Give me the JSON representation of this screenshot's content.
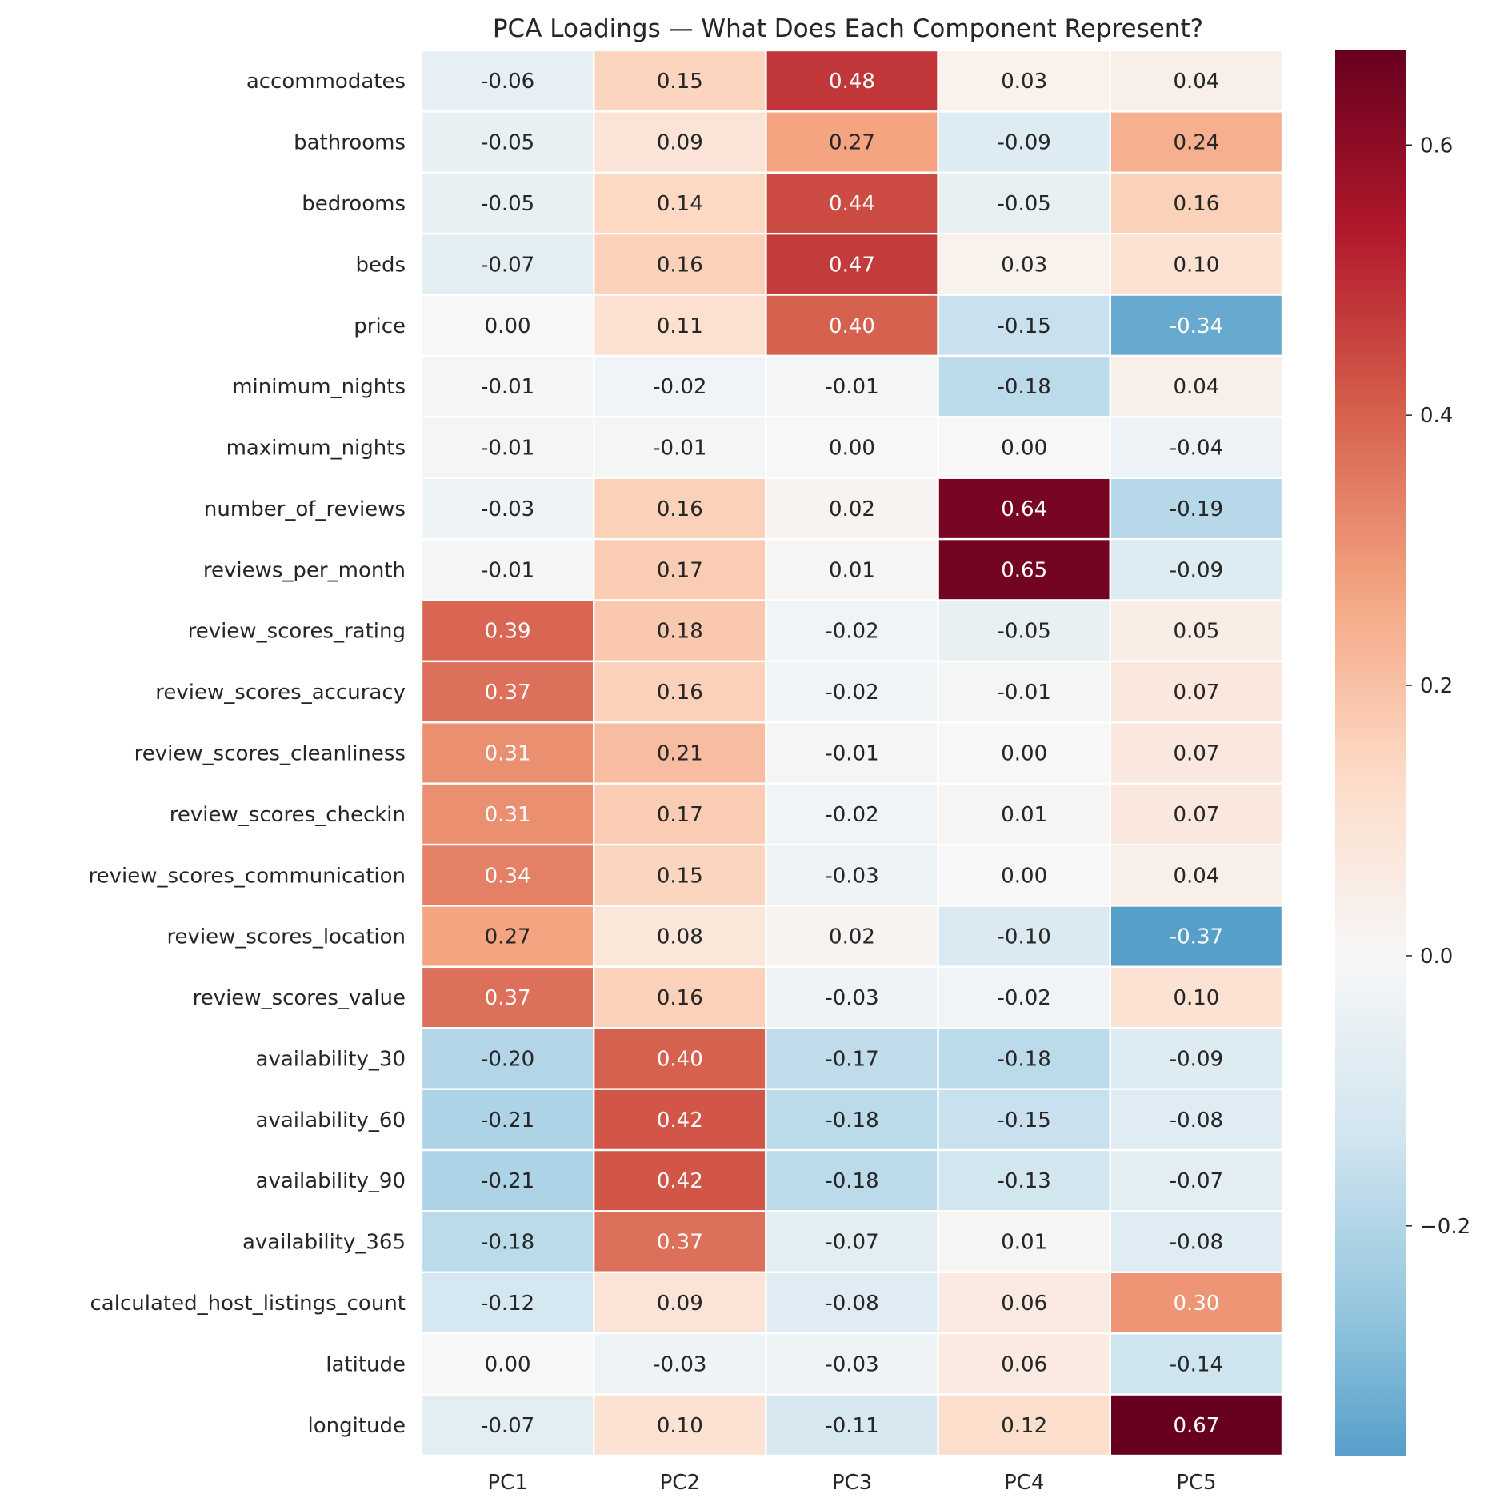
{
  "chart_data": {
    "type": "heatmap",
    "title": "PCA Loadings — What Does Each Component Represent?",
    "columns": [
      "PC1",
      "PC2",
      "PC3",
      "PC4",
      "PC5"
    ],
    "rows": [
      "accommodates",
      "bathrooms",
      "bedrooms",
      "beds",
      "price",
      "minimum_nights",
      "maximum_nights",
      "number_of_reviews",
      "reviews_per_month",
      "review_scores_rating",
      "review_scores_accuracy",
      "review_scores_cleanliness",
      "review_scores_checkin",
      "review_scores_communication",
      "review_scores_location",
      "review_scores_value",
      "availability_30",
      "availability_60",
      "availability_90",
      "availability_365",
      "calculated_host_listings_count",
      "latitude",
      "longitude"
    ],
    "values": [
      [
        -0.06,
        0.15,
        0.48,
        0.03,
        0.04
      ],
      [
        -0.05,
        0.09,
        0.27,
        -0.09,
        0.24
      ],
      [
        -0.05,
        0.14,
        0.44,
        -0.05,
        0.16
      ],
      [
        -0.07,
        0.16,
        0.47,
        0.03,
        0.1
      ],
      [
        -0.0,
        0.11,
        0.4,
        -0.15,
        -0.34
      ],
      [
        -0.01,
        -0.02,
        -0.01,
        -0.18,
        0.04
      ],
      [
        -0.01,
        -0.01,
        -0.0,
        0.0,
        -0.04
      ],
      [
        -0.03,
        0.16,
        0.02,
        0.64,
        -0.19
      ],
      [
        -0.01,
        0.17,
        0.01,
        0.65,
        -0.09
      ],
      [
        0.39,
        0.18,
        -0.02,
        -0.05,
        0.05
      ],
      [
        0.37,
        0.16,
        -0.02,
        -0.01,
        0.07
      ],
      [
        0.31,
        0.21,
        -0.01,
        0.0,
        0.07
      ],
      [
        0.31,
        0.17,
        -0.02,
        0.01,
        0.07
      ],
      [
        0.34,
        0.15,
        -0.03,
        -0.0,
        0.04
      ],
      [
        0.27,
        0.08,
        0.02,
        -0.1,
        -0.37
      ],
      [
        0.37,
        0.16,
        -0.03,
        -0.02,
        0.1
      ],
      [
        -0.2,
        0.4,
        -0.17,
        -0.18,
        -0.09
      ],
      [
        -0.21,
        0.42,
        -0.18,
        -0.15,
        -0.08
      ],
      [
        -0.21,
        0.42,
        -0.18,
        -0.13,
        -0.07
      ],
      [
        -0.18,
        0.37,
        -0.07,
        0.01,
        -0.08
      ],
      [
        -0.12,
        0.09,
        -0.08,
        0.06,
        0.3
      ],
      [
        -0.0,
        -0.03,
        -0.03,
        0.06,
        -0.14
      ],
      [
        -0.07,
        0.1,
        -0.11,
        0.12,
        0.67
      ]
    ],
    "colormap": "RdBu_r",
    "center": 0,
    "vmin": -0.37,
    "vmax": 0.67,
    "colorbar_ticks": [
      -0.2,
      0.0,
      0.2,
      0.4,
      0.6
    ],
    "colorbar_tick_labels": [
      "−0.2",
      "0.0",
      "0.2",
      "0.4",
      "0.6"
    ],
    "annotation_format": "0.00"
  }
}
